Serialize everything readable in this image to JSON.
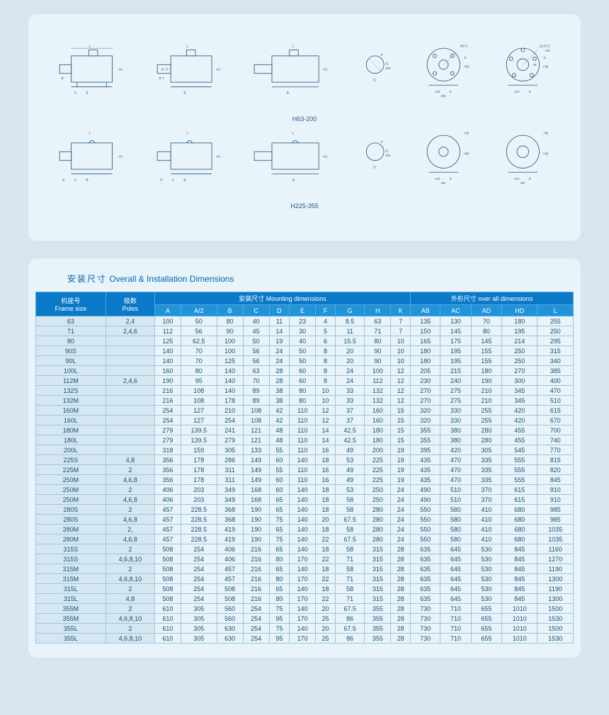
{
  "diagram_labels": {
    "mid1": "H63-200",
    "mid2": "H225-355",
    "angle1": "45°C",
    "angle2": "22.5°C"
  },
  "section_title": {
    "cn": "安装尺寸",
    "en": "Overall & Installation Dimensions"
  },
  "table": {
    "header_group1_label": "机座号",
    "header_group1_label_en": "Frame size",
    "header_group2_label": "极数",
    "header_group2_label_en": "Poles",
    "header_group_mounting_cn": "安装尺寸",
    "header_group_mounting_en": "Mounting dimensions",
    "header_group_overall_cn": "外形尺寸",
    "header_group_overall_en": "over all dimensions",
    "columns": [
      "A",
      "A/2",
      "B",
      "C",
      "D",
      "E",
      "F",
      "G",
      "H",
      "K",
      "AB",
      "AC",
      "AD",
      "HD",
      "L"
    ],
    "rows": [
      {
        "frame": "63",
        "poles": "2,4",
        "d": [
          "100",
          "50",
          "80",
          "40",
          "11",
          "23",
          "4",
          "8.5",
          "63",
          "7",
          "135",
          "130",
          "70",
          "180",
          "255"
        ]
      },
      {
        "frame": "71",
        "poles": "2,4,6",
        "d": [
          "112",
          "56",
          "90",
          "45",
          "14",
          "30",
          "5",
          "11",
          "71",
          "7",
          "150",
          "145",
          "80",
          "195",
          "250"
        ]
      },
      {
        "frame": "80",
        "poles": "",
        "d": [
          "125",
          "62.5",
          "100",
          "50",
          "19",
          "40",
          "6",
          "15.5",
          "80",
          "10",
          "165",
          "175",
          "145",
          "214",
          "295"
        ]
      },
      {
        "frame": "90S",
        "poles": "",
        "d": [
          "140",
          "70",
          "100",
          "56",
          "24",
          "50",
          "8",
          "20",
          "90",
          "10",
          "180",
          "195",
          "155",
          "250",
          "315"
        ]
      },
      {
        "frame": "90L",
        "poles": "",
        "d": [
          "140",
          "70",
          "125",
          "56",
          "24",
          "50",
          "8",
          "20",
          "90",
          "10",
          "180",
          "195",
          "155",
          "250",
          "340"
        ]
      },
      {
        "frame": "100L",
        "poles": "",
        "d": [
          "160",
          "80",
          "140",
          "63",
          "28",
          "60",
          "8",
          "24",
          "100",
          "12",
          "205",
          "215",
          "180",
          "270",
          "385"
        ]
      },
      {
        "frame": "112M",
        "poles": "2,4,6",
        "d": [
          "190",
          "95",
          "140",
          "70",
          "28",
          "60",
          "8",
          "24",
          "112",
          "12",
          "230",
          "240",
          "190",
          "300",
          "400"
        ]
      },
      {
        "frame": "132S",
        "poles": "",
        "d": [
          "216",
          "108",
          "140",
          "89",
          "38",
          "80",
          "10",
          "33",
          "132",
          "12",
          "270",
          "275",
          "210",
          "345",
          "470"
        ]
      },
      {
        "frame": "132M",
        "poles": "",
        "d": [
          "216",
          "108",
          "178",
          "89",
          "38",
          "80",
          "10",
          "33",
          "132",
          "12",
          "270",
          "275",
          "210",
          "345",
          "510"
        ]
      },
      {
        "frame": "160M",
        "poles": "",
        "d": [
          "254",
          "127",
          "210",
          "108",
          "42",
          "110",
          "12",
          "37",
          "160",
          "15",
          "320",
          "330",
          "255",
          "420",
          "615"
        ]
      },
      {
        "frame": "160L",
        "poles": "",
        "d": [
          "254",
          "127",
          "254",
          "108",
          "42",
          "110",
          "12",
          "37",
          "160",
          "15",
          "320",
          "330",
          "255",
          "420",
          "670"
        ]
      },
      {
        "frame": "180M",
        "poles": "",
        "d": [
          "279",
          "139.5",
          "241",
          "121",
          "48",
          "110",
          "14",
          "42.5",
          "180",
          "15",
          "355",
          "380",
          "280",
          "455",
          "700"
        ]
      },
      {
        "frame": "180L",
        "poles": "",
        "d": [
          "279",
          "139.5",
          "279",
          "121",
          "48",
          "110",
          "14",
          "42.5",
          "180",
          "15",
          "355",
          "380",
          "280",
          "455",
          "740"
        ]
      },
      {
        "frame": "200L",
        "poles": "",
        "d": [
          "318",
          "159",
          "305",
          "133",
          "55",
          "110",
          "16",
          "49",
          "200",
          "19",
          "395",
          "420",
          "305",
          "545",
          "770"
        ]
      },
      {
        "frame": "225S",
        "poles": "4,8",
        "d": [
          "356",
          "178",
          "286",
          "149",
          "60",
          "140",
          "18",
          "53",
          "225",
          "19",
          "435",
          "470",
          "335",
          "555",
          "815"
        ]
      },
      {
        "frame": "225M",
        "poles": "2",
        "d": [
          "356",
          "178",
          "311",
          "149",
          "55",
          "110",
          "16",
          "49",
          "225",
          "19",
          "435",
          "470",
          "335",
          "555",
          "820"
        ]
      },
      {
        "frame": "250M",
        "poles": "4,6,8",
        "d": [
          "356",
          "178",
          "311",
          "149",
          "60",
          "110",
          "16",
          "49",
          "225",
          "19",
          "435",
          "470",
          "335",
          "555",
          "845"
        ]
      },
      {
        "frame": "250M",
        "poles": "2",
        "d": [
          "406",
          "203",
          "349",
          "168",
          "60",
          "140",
          "18",
          "53",
          "250",
          "24",
          "490",
          "510",
          "370",
          "615",
          "910"
        ]
      },
      {
        "frame": "250M",
        "poles": "4,6,8",
        "d": [
          "406",
          "203",
          "349",
          "168",
          "65",
          "140",
          "18",
          "58",
          "250",
          "24",
          "490",
          "510",
          "370",
          "615",
          "910"
        ]
      },
      {
        "frame": "280S",
        "poles": "2",
        "d": [
          "457",
          "228.5",
          "368",
          "190",
          "65",
          "140",
          "18",
          "58",
          "280",
          "24",
          "550",
          "580",
          "410",
          "680",
          "985"
        ]
      },
      {
        "frame": "280S",
        "poles": "4,6,8",
        "d": [
          "457",
          "228.5",
          "368",
          "190",
          "75",
          "140",
          "20",
          "67.5",
          "280",
          "24",
          "550",
          "580",
          "410",
          "680",
          "985"
        ]
      },
      {
        "frame": "280M",
        "poles": "2,",
        "d": [
          "457",
          "228.5",
          "419",
          "190",
          "65",
          "140",
          "18",
          "58",
          "280",
          "24",
          "550",
          "580",
          "410",
          "680",
          "1035"
        ]
      },
      {
        "frame": "280M",
        "poles": "4,6,8",
        "d": [
          "457",
          "228.5",
          "419",
          "190",
          "75",
          "140",
          "22",
          "67.5",
          "280",
          "24",
          "550",
          "580",
          "410",
          "680",
          "1035"
        ]
      },
      {
        "frame": "315S",
        "poles": "2",
        "d": [
          "508",
          "254",
          "406",
          "216",
          "65",
          "140",
          "18",
          "58",
          "315",
          "28",
          "635",
          "645",
          "530",
          "845",
          "1160"
        ]
      },
      {
        "frame": "315S",
        "poles": "4,6,8,10",
        "d": [
          "508",
          "254",
          "406",
          "216",
          "80",
          "170",
          "22",
          "71",
          "315",
          "28",
          "635",
          "645",
          "530",
          "845",
          "1270"
        ]
      },
      {
        "frame": "315M",
        "poles": "2",
        "d": [
          "508",
          "254",
          "457",
          "216",
          "65",
          "140",
          "18",
          "58",
          "315",
          "28",
          "635",
          "645",
          "530",
          "845",
          "1190"
        ]
      },
      {
        "frame": "315M",
        "poles": "4,6,8,10",
        "d": [
          "508",
          "254",
          "457",
          "216",
          "80",
          "170",
          "22",
          "71",
          "315",
          "28",
          "635",
          "645",
          "530",
          "845",
          "1300"
        ]
      },
      {
        "frame": "315L",
        "poles": "2",
        "d": [
          "508",
          "254",
          "508",
          "216",
          "65",
          "140",
          "18",
          "58",
          "315",
          "28",
          "635",
          "645",
          "530",
          "845",
          "1190"
        ]
      },
      {
        "frame": "315L",
        "poles": "4,8",
        "d": [
          "508",
          "254",
          "508",
          "216",
          "80",
          "170",
          "22",
          "71",
          "315",
          "28",
          "635",
          "645",
          "530",
          "845",
          "1300"
        ]
      },
      {
        "frame": "355M",
        "poles": "2",
        "d": [
          "610",
          "305",
          "560",
          "254",
          "75",
          "140",
          "20",
          "67.5",
          "355",
          "28",
          "730",
          "710",
          "655",
          "1010",
          "1500"
        ]
      },
      {
        "frame": "355M",
        "poles": "4,6,8,10",
        "d": [
          "610",
          "305",
          "560",
          "254",
          "95",
          "170",
          "25",
          "86",
          "355",
          "28",
          "730",
          "710",
          "655",
          "1010",
          "1530"
        ]
      },
      {
        "frame": "355L",
        "poles": "2",
        "d": [
          "610",
          "305",
          "630",
          "254",
          "75",
          "140",
          "20",
          "67.5",
          "355",
          "28",
          "730",
          "710",
          "655",
          "1010",
          "1500"
        ]
      },
      {
        "frame": "355L",
        "poles": "4,6,8,10",
        "d": [
          "610",
          "305",
          "630",
          "254",
          "95",
          "170",
          "25",
          "86",
          "355",
          "28",
          "730",
          "710",
          "655",
          "1010",
          "1530"
        ]
      }
    ]
  }
}
